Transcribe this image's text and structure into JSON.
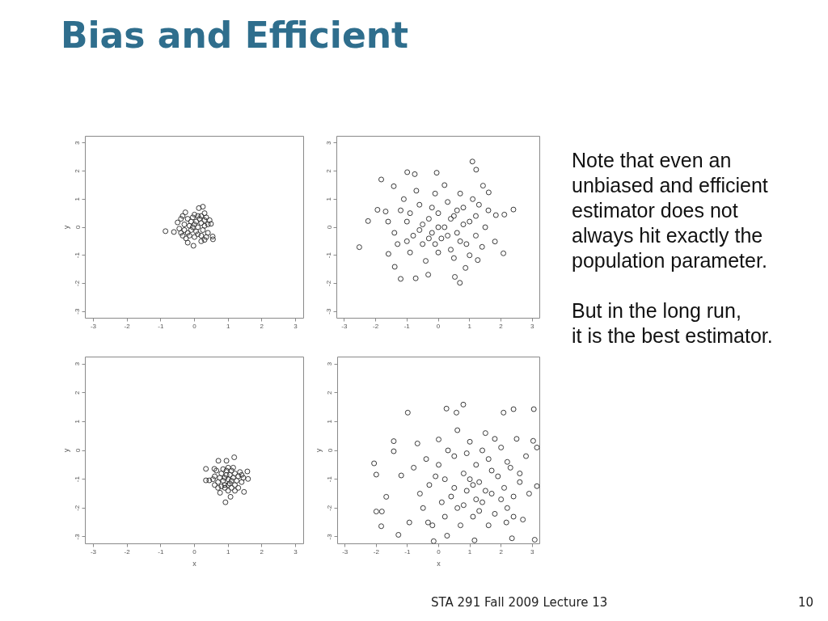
{
  "chart_data": [
    {
      "type": "scatter",
      "title": "Bias and Efficient",
      "ylabel": "y",
      "marker": "circle",
      "color": "#3a3a3a",
      "xlim": [
        -3.24,
        3.24
      ],
      "ylim": [
        -3.24,
        3.24
      ],
      "xticks": [
        -3,
        -2,
        -1,
        0,
        1,
        2,
        3
      ],
      "yticks": [
        -3,
        -2,
        -1,
        0,
        1,
        2,
        3
      ],
      "x": [
        -0.86,
        0.13,
        0.25,
        0.55,
        0.54,
        -0.03,
        -0.61,
        -0.5,
        -0.27,
        0.49,
        -0.4,
        -0.35,
        0.35,
        0.4,
        0.2,
        -0.2,
        0.0,
        0.3,
        -0.45,
        0.45,
        -0.3,
        -0.2,
        -0.1,
        0.0,
        0.1,
        0.2,
        0.3,
        -0.1,
        -0.2,
        0.1,
        0.2,
        0.0,
        -0.3,
        0.15,
        -0.05,
        0.25,
        -0.15,
        0.05,
        0.35,
        -0.35,
        0.1,
        -0.25,
        0.4,
        -0.4,
        0.3,
        -0.05,
        0.05,
        -0.15,
        0.2,
        0.3
      ],
      "values": [
        -0.14,
        0.68,
        0.73,
        -0.43,
        -0.33,
        -0.66,
        -0.17,
        0.17,
        0.53,
        0.12,
        0.3,
        -0.3,
        0.35,
        -0.2,
        -0.5,
        -0.55,
        0.45,
        0.5,
        -0.05,
        0.25,
        0.1,
        0.3,
        0.2,
        0.1,
        0.0,
        0.15,
        0.05,
        -0.1,
        -0.2,
        -0.25,
        -0.3,
        -0.35,
        -0.1,
        0.3,
        0.35,
        -0.1,
        0.05,
        -0.15,
        -0.35,
        0.4,
        0.4,
        -0.4,
        0.1,
        -0.2,
        0.25,
        0.0,
        0.2,
        -0.3,
        0.4,
        -0.45
      ],
      "annotations": [
        "STA 291 Fall 2009 Lecture 13",
        "10"
      ]
    },
    {
      "type": "scatter",
      "marker": "circle",
      "color": "#3a3a3a",
      "xlim": [
        -3.24,
        3.24
      ],
      "ylim": [
        -3.24,
        3.24
      ],
      "xticks": [
        -3,
        -2,
        -1,
        0,
        1,
        2,
        3
      ],
      "yticks": [
        -3,
        -2,
        -1,
        0,
        1,
        2,
        3
      ],
      "x": [
        -2.52,
        -2.24,
        -1.82,
        -1.94,
        1.09,
        1.21,
        2.4,
        2.11,
        2.08,
        -1.2,
        -0.72,
        0.69,
        -0.99,
        -0.75,
        -0.05,
        -1.39,
        -1.59,
        1.81,
        1.84,
        1.26,
        -0.32,
        0.53,
        0.87,
        1.61,
        1.43,
        -1.42,
        -1.68,
        -1.2,
        -1.0,
        -0.8,
        -0.6,
        -0.5,
        -0.3,
        -0.2,
        0.0,
        0.1,
        0.2,
        0.3,
        0.4,
        0.5,
        0.6,
        0.8,
        0.9,
        1.0,
        1.2,
        1.3,
        1.5,
        -1.4,
        -1.3,
        -1.1,
        -0.9,
        -0.7,
        -0.4,
        -0.1,
        0.0,
        0.2,
        0.5,
        0.7,
        1.0,
        1.1,
        1.4,
        1.6,
        -1.6,
        -0.9,
        -0.5,
        -0.1,
        0.3,
        0.4,
        0.7,
        0.8,
        -0.2,
        -0.6,
        0.0,
        -0.3,
        0.6,
        1.2,
        -1.0
      ],
      "values": [
        -0.71,
        0.22,
        1.7,
        0.62,
        2.34,
        2.05,
        0.63,
        0.45,
        -0.93,
        -1.84,
        -1.82,
        -1.98,
        1.96,
        1.89,
        1.94,
        -1.41,
        -0.95,
        -0.51,
        0.43,
        -1.17,
        -1.69,
        -1.77,
        -1.45,
        1.24,
        1.48,
        1.46,
        0.56,
        0.6,
        0.2,
        -0.3,
        0.8,
        -0.6,
        0.3,
        -0.2,
        0.5,
        -0.4,
        0.0,
        0.9,
        -0.8,
        0.4,
        -0.2,
        0.7,
        -0.6,
        0.2,
        -0.3,
        0.8,
        0.0,
        -0.2,
        -0.6,
        1.0,
        -0.9,
        1.3,
        -1.2,
        1.2,
        -0.9,
        1.5,
        -1.1,
        1.2,
        -1.0,
        1.0,
        -0.7,
        0.6,
        0.2,
        0.5,
        0.1,
        -0.6,
        -0.3,
        0.3,
        -0.5,
        0.1,
        0.7,
        -0.1,
        0.0,
        -0.4,
        0.6,
        0.4,
        -0.5
      ]
    },
    {
      "type": "scatter",
      "xlabel": "x",
      "ylabel": "y",
      "marker": "circle",
      "color": "#3a3a3a",
      "xlim": [
        -3.24,
        3.24
      ],
      "ylim": [
        -3.24,
        3.24
      ],
      "xticks": [
        -3,
        -2,
        -1,
        0,
        1,
        2,
        3
      ],
      "yticks": [
        -3,
        -2,
        -1,
        0,
        1,
        2,
        3
      ],
      "x": [
        1.18,
        0.92,
        1.07,
        0.34,
        0.34,
        0.44,
        1.59,
        1.57,
        0.59,
        0.71,
        1.47,
        0.76,
        0.95,
        1.0,
        0.8,
        1.2,
        0.7,
        1.3,
        0.9,
        1.1,
        0.6,
        1.4,
        1.0,
        0.85,
        1.15,
        0.95,
        1.05,
        0.75,
        1.25,
        1.0,
        0.9,
        1.2,
        0.8,
        1.35,
        0.65,
        1.3,
        0.7,
        1.1,
        0.95,
        1.45,
        0.55,
        1.2,
        0.85,
        1.05,
        0.9,
        1.1,
        1.0,
        1.15,
        0.6,
        1.4
      ],
      "values": [
        -0.24,
        -1.8,
        -1.61,
        -0.64,
        -1.04,
        -1.04,
        -0.99,
        -0.73,
        -0.64,
        -0.36,
        -1.44,
        -1.47,
        -0.36,
        -1.0,
        -0.8,
        -1.2,
        -1.1,
        -0.9,
        -1.3,
        -0.7,
        -0.9,
        -1.1,
        -1.4,
        -1.05,
        -0.95,
        -0.85,
        -1.15,
        -0.95,
        -1.05,
        -0.6,
        -1.2,
        -0.8,
        -1.25,
        -0.75,
        -0.7,
        -1.3,
        -1.3,
        -1.3,
        -0.7,
        -0.95,
        -1.0,
        -1.4,
        -0.65,
        -0.85,
        -0.95,
        -1.05,
        -1.2,
        -0.6,
        -1.2,
        -0.85
      ]
    },
    {
      "type": "scatter",
      "xlabel": "x",
      "ylabel": "y",
      "marker": "circle",
      "color": "#3a3a3a",
      "xlim": [
        -3.24,
        3.24
      ],
      "ylim": [
        -3.24,
        3.24
      ],
      "xticks": [
        -3,
        -2,
        -1,
        0,
        1,
        2,
        3
      ],
      "yticks": [
        -3,
        -2,
        -1,
        0,
        1,
        2,
        3
      ],
      "x": [
        -2.07,
        -2.0,
        -2.0,
        -1.82,
        -1.84,
        -1.29,
        -0.99,
        -1.44,
        -1.44,
        -1.68,
        -1.2,
        0.25,
        0.79,
        2.4,
        3.05,
        3.15,
        3.15,
        3.08,
        1.15,
        -0.16,
        0.57,
        2.08,
        3.03,
        2.35,
        0.27,
        2.17,
        -0.34,
        -0.94,
        -0.68,
        0.0,
        0.0,
        0.2,
        0.4,
        0.5,
        0.6,
        0.8,
        0.9,
        1.0,
        1.1,
        1.2,
        1.3,
        1.4,
        1.5,
        1.6,
        1.7,
        1.8,
        1.9,
        2.0,
        2.1,
        2.2,
        2.3,
        2.4,
        2.5,
        2.6,
        2.7,
        2.8,
        -0.3,
        -0.4,
        -0.5,
        -0.2,
        0.3,
        0.1,
        0.7,
        0.6,
        1.0,
        1.2,
        1.4,
        1.6,
        1.8,
        2.0,
        0.9,
        0.5,
        1.3,
        1.7,
        2.2,
        2.4,
        0.2,
        -0.1,
        -0.6,
        -0.8,
        2.6,
        1.1,
        0.8,
        1.5,
        2.9
      ],
      "values": [
        -0.45,
        -0.84,
        -2.12,
        -2.12,
        -2.63,
        -2.93,
        1.31,
        0.32,
        -0.03,
        -1.61,
        -0.87,
        1.45,
        1.59,
        1.43,
        1.43,
        0.1,
        -1.24,
        -3.1,
        -3.12,
        -3.15,
        1.31,
        1.31,
        0.33,
        -3.05,
        -2.96,
        -2.5,
        -2.5,
        -2.5,
        0.24,
        0.38,
        -0.5,
        -1.0,
        -1.6,
        -0.2,
        -2.0,
        -0.8,
        -1.4,
        0.3,
        -2.3,
        -0.5,
        -1.1,
        -1.8,
        0.6,
        -0.3,
        -1.5,
        -2.2,
        -0.9,
        0.1,
        -1.3,
        -2.0,
        -0.6,
        -1.6,
        0.4,
        -1.1,
        -2.4,
        -0.2,
        -1.2,
        -0.3,
        -2.0,
        -2.6,
        0.0,
        -1.8,
        -2.6,
        0.7,
        -1.0,
        -1.7,
        0.0,
        -2.6,
        0.4,
        -1.7,
        -0.1,
        -1.3,
        -2.1,
        -0.7,
        -0.4,
        -2.3,
        -2.3,
        -0.9,
        -1.5,
        -0.6,
        -0.8,
        -1.2,
        -1.9,
        -1.4,
        -1.5
      ]
    },
    {
      "type": "other",
      "annotations": [
        "Note that even an\nunbiased and efficient\nestimator does not\nalways hit exactly the\npopulation parameter.",
        "But in the long run,\nit is the best estimator."
      ]
    }
  ]
}
